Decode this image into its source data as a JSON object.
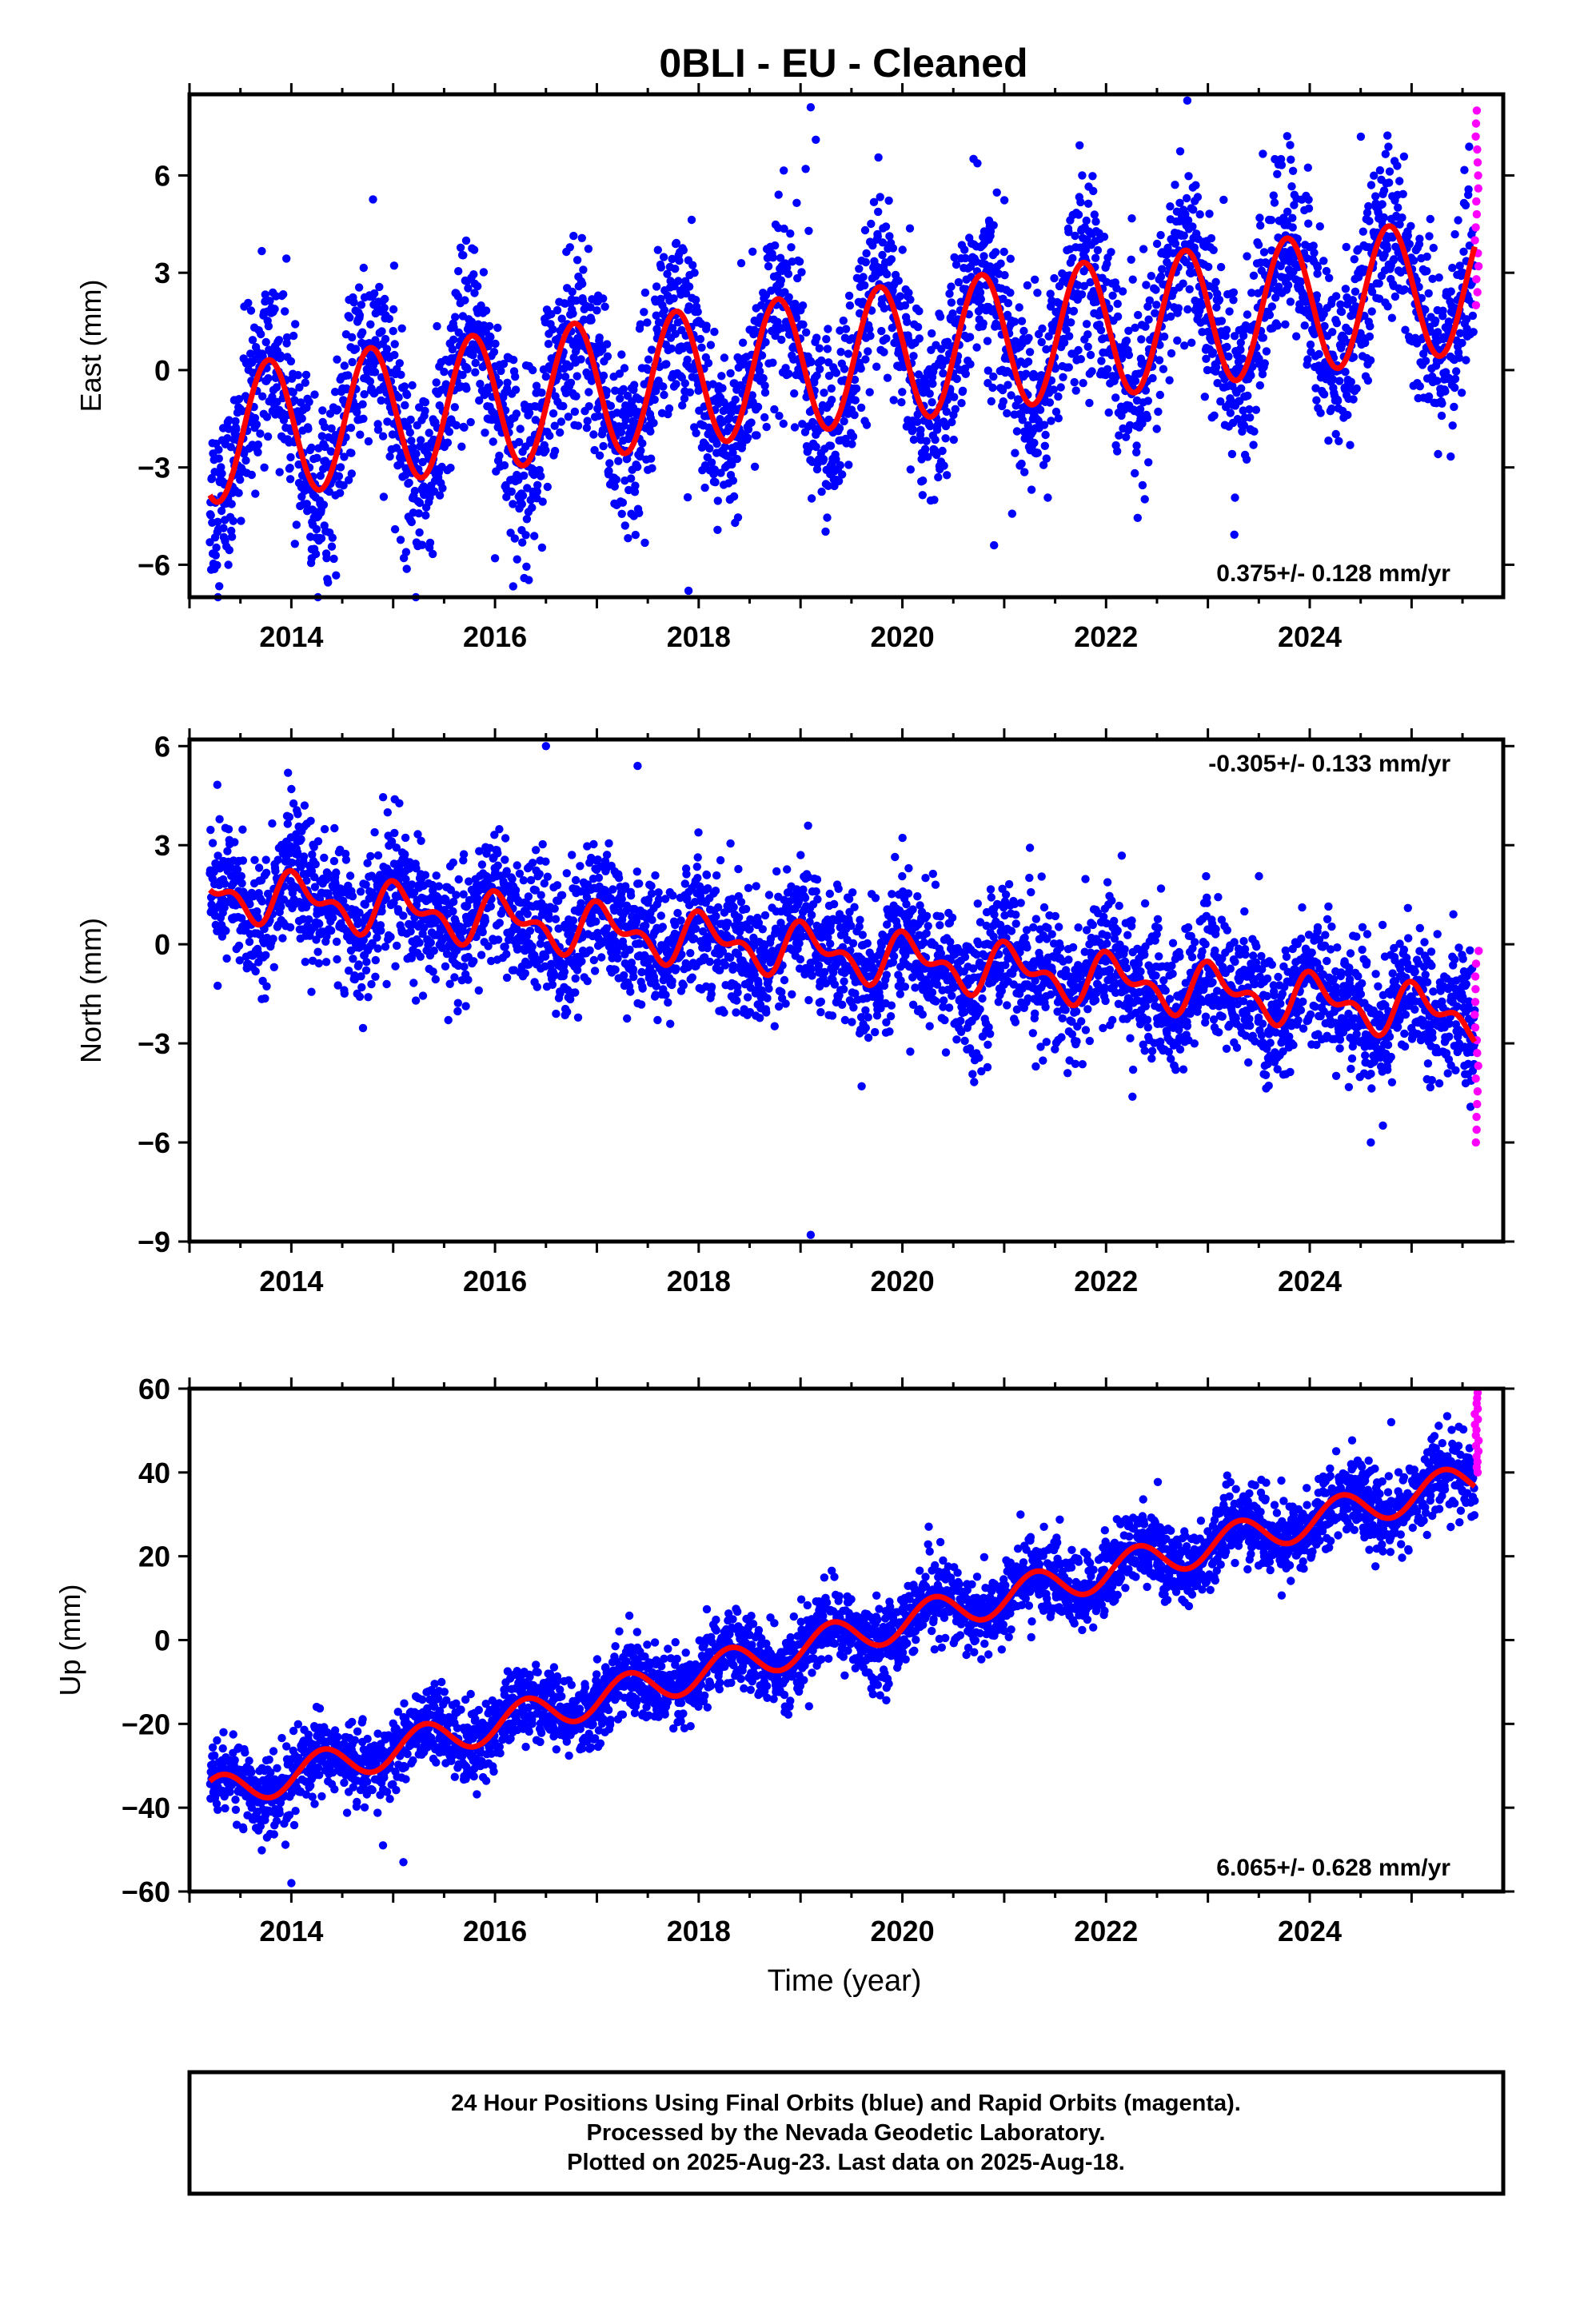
{
  "title": "0BLI  - EU - Cleaned",
  "xlabel": "Time (year)",
  "footer": {
    "line1": "24 Hour Positions Using Final Orbits (blue) and Rapid Orbits (magenta).",
    "line2": "Processed by the Nevada Geodetic Laboratory.",
    "line3": "Plotted on 2025-Aug-23. Last data on 2025-Aug-18."
  },
  "colors": {
    "final_points": "#0000ff",
    "rapid_points": "#ff00ff",
    "model_line": "#ff0000",
    "frame": "#000000"
  },
  "chart_data": [
    {
      "type": "scatter",
      "name": "east",
      "ylabel": "East (mm)",
      "rate_label": "0.375+/- 0.128 mm/yr",
      "rate_position": "bottom-right",
      "xlim": [
        2013.0,
        2025.9
      ],
      "ylim": [
        -7,
        8.5
      ],
      "xticks": [
        "2014",
        "2016",
        "2018",
        "2020",
        "2022",
        "2024"
      ],
      "yticks": [
        "-6",
        "-3",
        "0",
        "3",
        "6"
      ],
      "grid": false,
      "model": {
        "x_start": 2013.2,
        "x_end": 2025.62,
        "intercept_at_2013_2": -2.0,
        "rate_mm_per_yr": 0.375,
        "annual_amplitude": 2.1,
        "annual_phase_deg": 170,
        "semiannual_amplitude": 0.0
      },
      "scatter": {
        "spread_mm": 1.4,
        "n_final": 3900,
        "outliers": [
          [
            2019.1,
            8.1
          ],
          [
            2019.15,
            7.1
          ],
          [
            2019.05,
            6.2
          ],
          [
            2017.9,
            -6.8
          ],
          [
            2014.2,
            -5.8
          ],
          [
            2016.0,
            -5.8
          ],
          [
            2020.9,
            -5.4
          ]
        ],
        "rapid_x": [
          2025.62,
          2025.66
        ],
        "rapid_y_range": [
          2.0,
          8.0
        ]
      }
    },
    {
      "type": "scatter",
      "name": "north",
      "ylabel": "North (mm)",
      "rate_label": "-0.305+/- 0.133 mm/yr",
      "rate_position": "top-right",
      "xlim": [
        2013.0,
        2025.9
      ],
      "ylim": [
        -9.0,
        6.2
      ],
      "xticks": [
        "2014",
        "2016",
        "2018",
        "2020",
        "2022",
        "2024"
      ],
      "yticks": [
        "-9",
        "-6",
        "-3",
        "0",
        "3",
        "6"
      ],
      "grid": false,
      "model": {
        "x_start": 2013.2,
        "x_end": 2025.62,
        "intercept_at_2013_2": 1.6,
        "rate_mm_per_yr": -0.305,
        "annual_amplitude": 0.6,
        "annual_phase_deg": 60,
        "semiannual_amplitude": 0.4
      },
      "scatter": {
        "spread_mm": 1.0,
        "n_final": 3900,
        "outliers": [
          [
            2019.1,
            -8.8
          ],
          [
            2016.5,
            6.0
          ],
          [
            2017.4,
            5.4
          ],
          [
            2014.0,
            4.7
          ],
          [
            2019.6,
            -4.3
          ],
          [
            2024.6,
            -6.0
          ]
        ],
        "rapid_x": [
          2025.62,
          2025.66
        ],
        "rapid_y_range": [
          -6.0,
          -0.2
        ]
      }
    },
    {
      "type": "scatter",
      "name": "up",
      "ylabel": "Up (mm)",
      "rate_label": "6.065+/- 0.628 mm/yr",
      "rate_position": "bottom-right",
      "xlim": [
        2013.0,
        2025.9
      ],
      "ylim": [
        -60,
        60
      ],
      "xticks": [
        "2014",
        "2016",
        "2018",
        "2020",
        "2022",
        "2024"
      ],
      "yticks": [
        "-60",
        "-40",
        "-20",
        "0",
        "20",
        "40",
        "60"
      ],
      "grid": false,
      "model": {
        "x_start": 2013.2,
        "x_end": 2025.62,
        "intercept_at_2013_2": -37.0,
        "rate_mm_per_yr": 6.065,
        "annual_amplitude": 4.2,
        "annual_phase_deg": -20,
        "semiannual_amplitude": 0.0
      },
      "scatter": {
        "spread_mm": 4.5,
        "n_final": 3900,
        "outliers": [
          [
            2014.0,
            -58.0
          ],
          [
            2015.1,
            -53.0
          ],
          [
            2014.9,
            -49.0
          ],
          [
            2024.8,
            52.0
          ]
        ],
        "rapid_x": [
          2025.62,
          2025.66
        ],
        "rapid_y_range": [
          40.0,
          59.0
        ]
      }
    }
  ]
}
